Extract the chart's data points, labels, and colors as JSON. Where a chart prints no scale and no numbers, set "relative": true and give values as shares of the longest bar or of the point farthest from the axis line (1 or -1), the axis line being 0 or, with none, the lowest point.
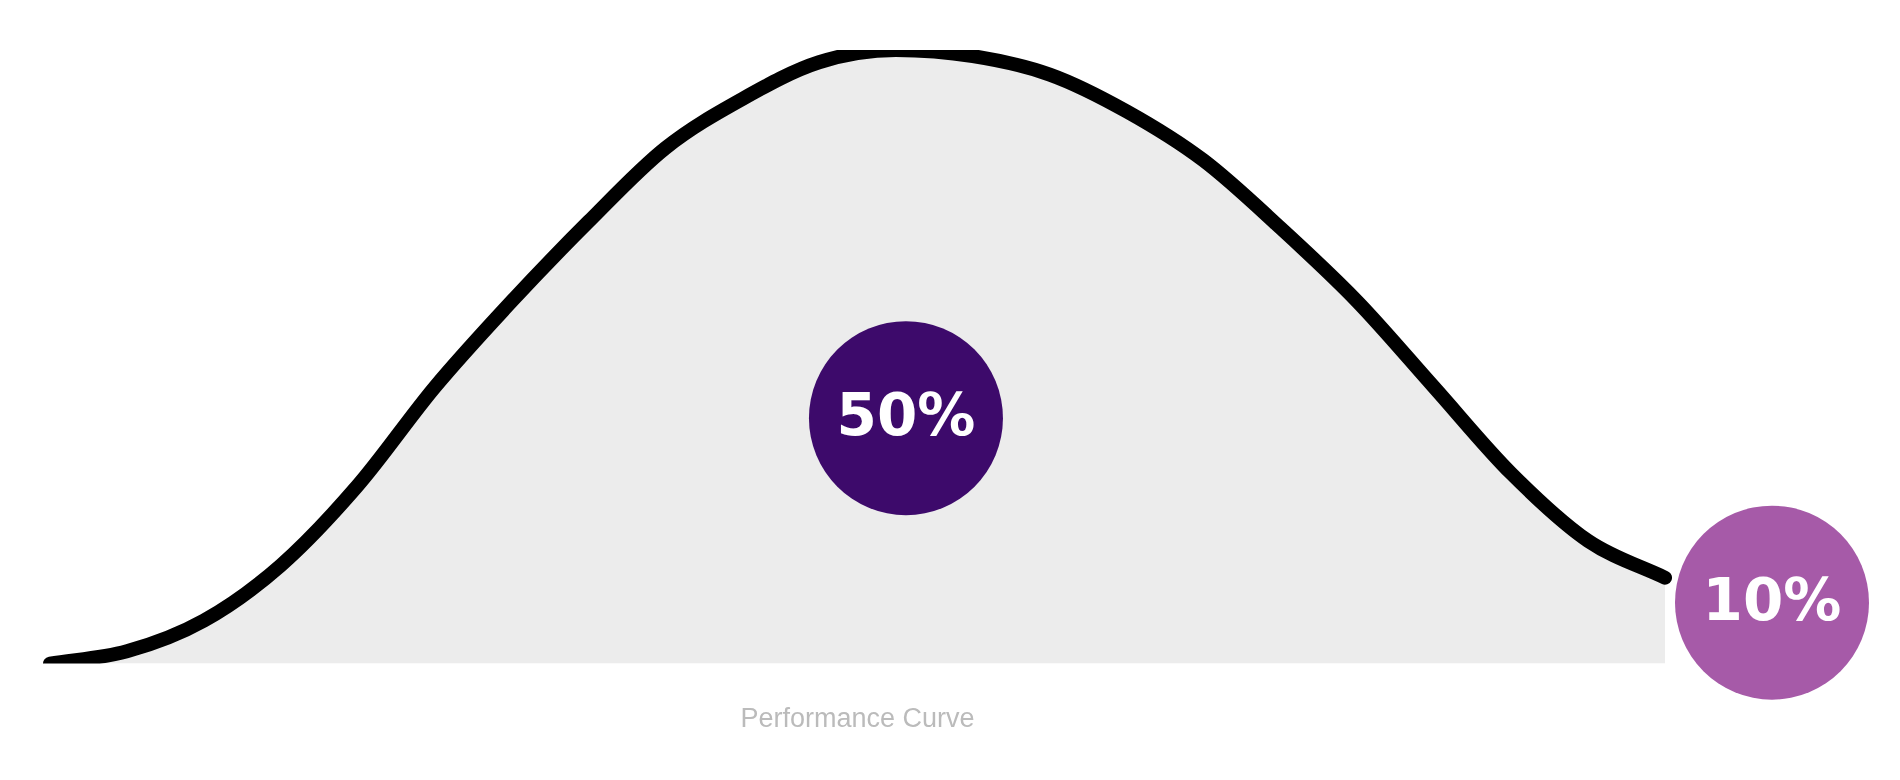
{
  "chart_data": {
    "type": "area",
    "relative": true,
    "xlabel": "Performance Curve",
    "categories": [
      null,
      null,
      null,
      null,
      null,
      null,
      null,
      null,
      null,
      null,
      null,
      null,
      null,
      null,
      null,
      null,
      null,
      null,
      null,
      null,
      null,
      null
    ],
    "series": [
      {
        "color": "#000000",
        "values": [
          0,
          0.02,
          0.07,
          0.16,
          0.29,
          0.45,
          0.59,
          0.72,
          0.84,
          0.92,
          0.98,
          1,
          0.99,
          0.96,
          0.9,
          0.82,
          0.71,
          0.59,
          0.45,
          0.31,
          0.2,
          0.14
        ]
      }
    ],
    "annotations": [
      "50%",
      "10%"
    ],
    "legend": false,
    "grid": false
  }
}
